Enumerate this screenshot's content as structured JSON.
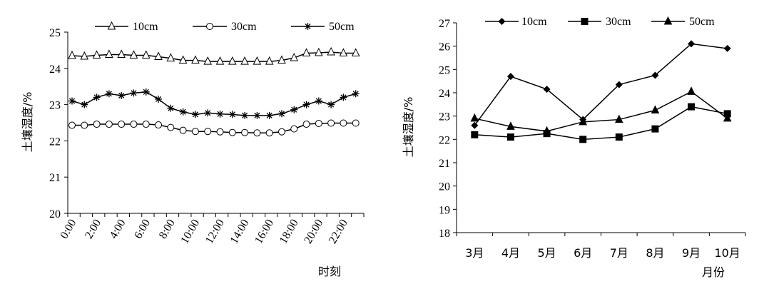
{
  "chart_data": [
    {
      "type": "line",
      "ylabel": "土壤湿度/%",
      "xlabel": "时刻",
      "ylim": [
        20,
        25
      ],
      "yticks": [
        "20",
        "21",
        "22",
        "23",
        "24",
        "25"
      ],
      "xtick_labels": [
        "0:00",
        "2:00",
        "4:00",
        "6:00",
        "8:00",
        "10:00",
        "12:00",
        "14:00",
        "16:00",
        "18:00",
        "20:00",
        "22:00"
      ],
      "legend_position": "top",
      "series": [
        {
          "name": "10cm",
          "marker": "triangle-open",
          "values": [
            24.35,
            24.33,
            24.36,
            24.38,
            24.38,
            24.36,
            24.36,
            24.32,
            24.28,
            24.22,
            24.22,
            24.19,
            24.19,
            24.19,
            24.19,
            24.19,
            24.19,
            24.22,
            24.29,
            24.42,
            24.43,
            24.45,
            24.42,
            24.42
          ]
        },
        {
          "name": "30cm",
          "marker": "circle-open",
          "values": [
            22.43,
            22.43,
            22.46,
            22.46,
            22.46,
            22.46,
            22.46,
            22.44,
            22.37,
            22.29,
            22.26,
            22.26,
            22.25,
            22.23,
            22.23,
            22.22,
            22.22,
            22.25,
            22.33,
            22.46,
            22.48,
            22.49,
            22.49,
            22.49
          ]
        },
        {
          "name": "50cm",
          "marker": "asterisk",
          "values": [
            23.1,
            23.0,
            23.2,
            23.3,
            23.25,
            23.32,
            23.35,
            23.15,
            22.9,
            22.8,
            22.73,
            22.77,
            22.74,
            22.73,
            22.7,
            22.7,
            22.7,
            22.75,
            22.86,
            23.0,
            23.1,
            23.0,
            23.2,
            23.3
          ]
        }
      ]
    },
    {
      "type": "line",
      "ylabel": "土壤湿度/%",
      "xlabel": "月份",
      "ylim": [
        18,
        27
      ],
      "yticks": [
        "18",
        "19",
        "20",
        "21",
        "22",
        "23",
        "24",
        "25",
        "26",
        "27"
      ],
      "categories": [
        "3月",
        "4月",
        "5月",
        "6月",
        "7月",
        "8月",
        "9月",
        "10月"
      ],
      "legend_position": "top",
      "series": [
        {
          "name": "10cm",
          "marker": "diamond-filled",
          "values": [
            22.6,
            24.7,
            24.15,
            22.85,
            24.35,
            24.75,
            26.1,
            25.9
          ]
        },
        {
          "name": "30cm",
          "marker": "square-filled",
          "values": [
            22.2,
            22.1,
            22.25,
            22.0,
            22.1,
            22.45,
            23.4,
            23.1
          ]
        },
        {
          "name": "50cm",
          "marker": "triangle-filled",
          "values": [
            22.9,
            22.55,
            22.35,
            22.75,
            22.85,
            23.25,
            24.05,
            22.9
          ]
        }
      ]
    }
  ]
}
